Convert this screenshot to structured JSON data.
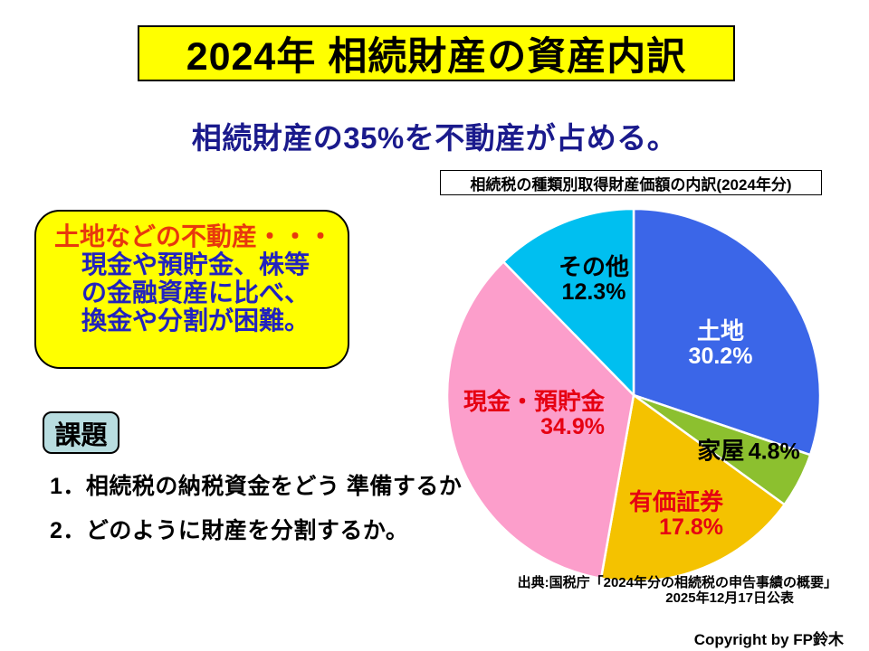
{
  "slide": {
    "title": "2024年 相続財産の資産内訳",
    "subtitle": "相続財産の35%を不動産が占める。",
    "chart_caption": "相続税の種類別取得財産価額の内訳(2024年分)",
    "callout": {
      "heading": "土地などの不動産・・・",
      "lines": [
        "現金や預貯金、株等",
        "の金融資産に比べ、",
        "換金や分割が困難。"
      ]
    },
    "issues": {
      "badge": "課題",
      "items": [
        "1．相続税の納税資金をどう 準備するか",
        "2．どのように財産を分割するか。"
      ]
    },
    "source_line1": "出典:国税庁「2024年分の相続税の申告事績の概要」",
    "source_line2": "2025年12月17日公表",
    "copyright": "Copyright by FP鈴木"
  },
  "colors": {
    "title_bg": "#ffff00",
    "subtitle_text": "#1a1a8c",
    "callout_bg": "#ffff00",
    "callout_heading_text": "#e8380d",
    "callout_body_text": "#2222be",
    "issues_badge_bg": "#b8dde0",
    "slice_separator": "#ffffff"
  },
  "chart_data": {
    "type": "pie",
    "title": "相続税の種類別取得財産価額の内訳(2024年分)",
    "unit": "%",
    "start_angle_deg": 0,
    "direction": "clockwise",
    "slices": [
      {
        "label": "土地",
        "value": 30.2,
        "color": "#3b66e8",
        "text_color": "#ffffff"
      },
      {
        "label": "家屋",
        "value": 4.8,
        "color": "#8cc02f",
        "text_color": "#000000"
      },
      {
        "label": "有価証券",
        "value": 17.8,
        "color": "#f4c200",
        "text_color": "#e60012"
      },
      {
        "label": "現金・預貯金",
        "value": 34.9,
        "color": "#fc9ecb",
        "text_color": "#e60012"
      },
      {
        "label": "その他",
        "value": 12.3,
        "color": "#00bff0",
        "text_color": "#000000"
      }
    ],
    "source": "出典:国税庁「2024年分の相続税の申告事績の概要」 2025年12月17日公表"
  }
}
